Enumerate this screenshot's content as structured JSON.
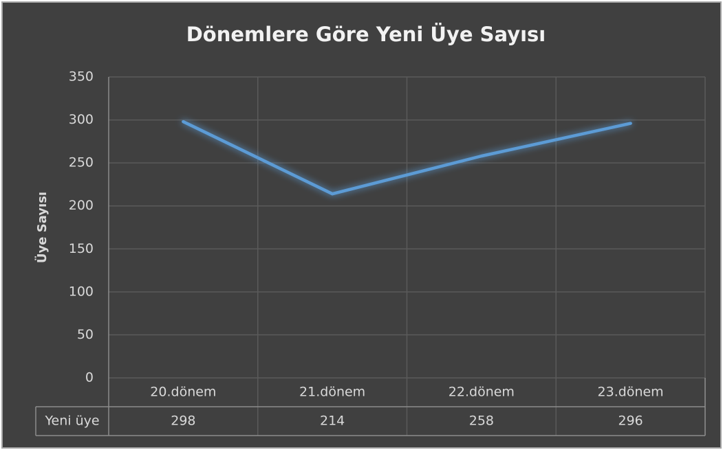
{
  "chart_data": {
    "type": "line",
    "title": "Dönemlere Göre Yeni Üye Sayısı",
    "y_label": "Üye Sayısı",
    "categories": [
      "20.dönem",
      "21.dönem",
      "22.dönem",
      "23.dönem"
    ],
    "series": [
      {
        "name": "Yeni üye",
        "color": "#5b9bd5",
        "values": [
          298,
          214,
          258,
          296
        ]
      }
    ],
    "ylim": [
      0,
      350
    ],
    "yticks": [
      0,
      50,
      100,
      150,
      200,
      250,
      300,
      350
    ],
    "grid": true
  }
}
